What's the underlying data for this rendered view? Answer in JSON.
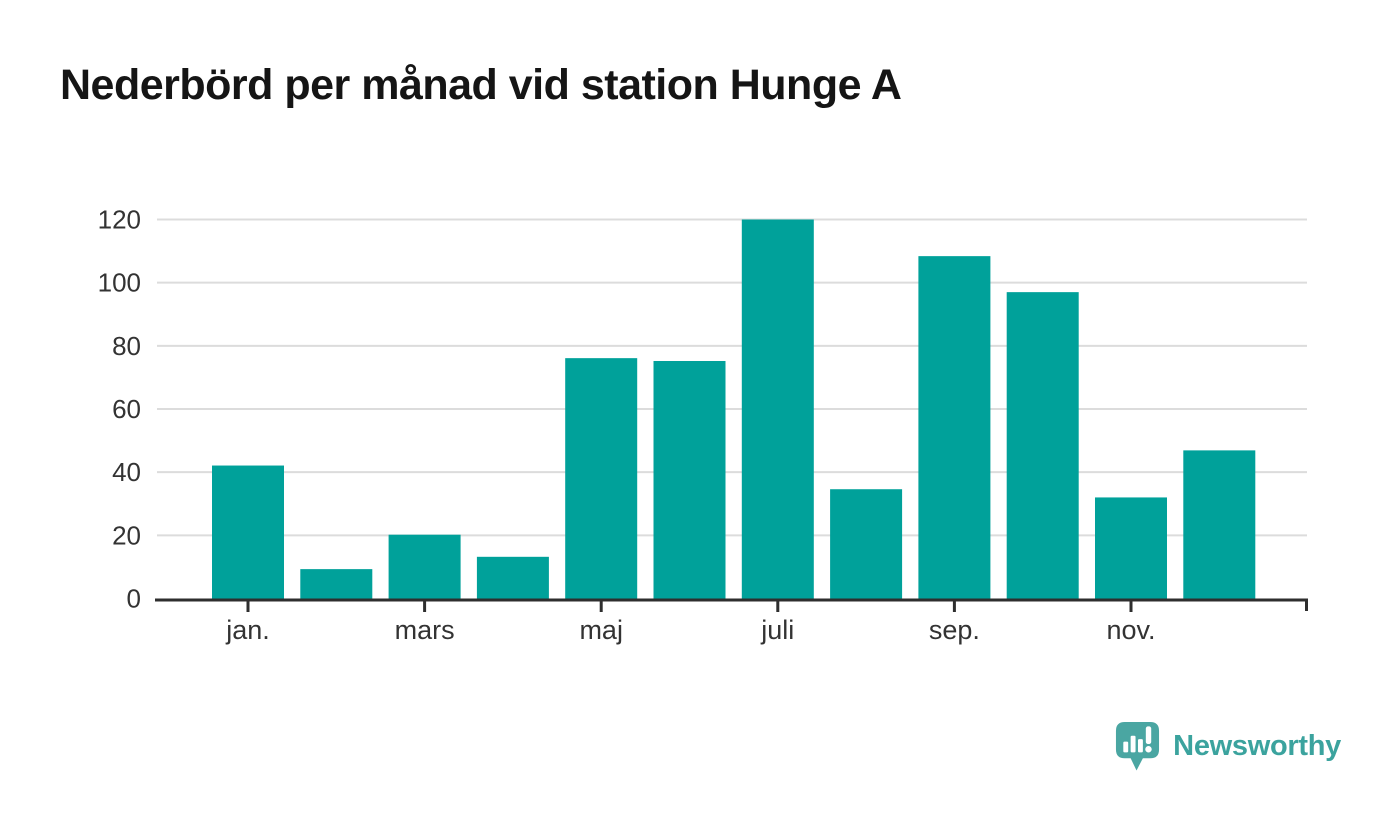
{
  "chart_data": {
    "type": "bar",
    "title": "Nederbörd per månad vid station Hunge A",
    "categories": [
      "jan.",
      "",
      "mars",
      "",
      "maj",
      "",
      "juli",
      "",
      "sep.",
      "",
      "nov.",
      ""
    ],
    "values": [
      42.1,
      9.3,
      20.2,
      13.2,
      76.1,
      75.2,
      120,
      34.6,
      108.4,
      97,
      32,
      46.9
    ],
    "xlabel": "",
    "ylabel": "",
    "ylim": [
      0,
      120
    ],
    "yticks": [
      0,
      20,
      40,
      60,
      80,
      100,
      120
    ],
    "grid": "horizontal-gridlines-only",
    "legend": "none",
    "bar_color": "#00a19a"
  },
  "colors": {
    "background": "#ffffff",
    "bar": "#00a19a",
    "axis": "#2e2e2e",
    "gridline": "#dcdcdc",
    "tick_text": "#333333",
    "title_text": "#151515",
    "logo_text": "#3ba39e",
    "logo_icon": "#4aa6a2"
  },
  "branding": {
    "name": "Newsworthy",
    "icon": "speech-bubble-bar-chart-icon"
  }
}
